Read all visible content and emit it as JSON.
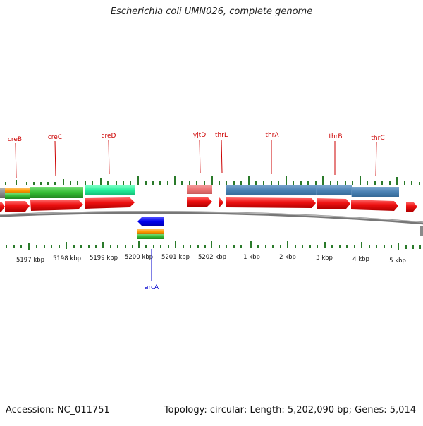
{
  "title": "Escherichia coli UMN026, complete genome",
  "footer": {
    "accession": "Accession: NC_011751",
    "summary": "Topology: circular; Length: 5,202,090 bp; Genes: 5,014"
  },
  "colors": {
    "gene_label": "#cc0000",
    "arc_label": "#0000cc",
    "tick": "#2a7a2a",
    "backbone": "#8a8a8a",
    "cds_red": "#ee1111",
    "cds_blue": "#0000ee",
    "blue_feature": "#4a82b4",
    "green_feature": "#33bb33",
    "mint_feature": "#22ee99",
    "orange_feature": "#ff9900",
    "pink_feature": "#ee7777"
  },
  "scale_labels": [
    "5197 kbp",
    "5198 kbp",
    "5199 kbp",
    "5200 kbp",
    "5201 kbp",
    "5202 kbp",
    "1 kbp",
    "2 kbp",
    "3 kbp",
    "4 kbp",
    "5 kbp"
  ],
  "gene_labels": [
    {
      "name": "creB"
    },
    {
      "name": "creC"
    },
    {
      "name": "creD"
    },
    {
      "name": "yjtD"
    },
    {
      "name": "thrL"
    },
    {
      "name": "thrA"
    },
    {
      "name": "thrB"
    },
    {
      "name": "thrC"
    }
  ],
  "lower_label": {
    "name": "arcA"
  }
}
